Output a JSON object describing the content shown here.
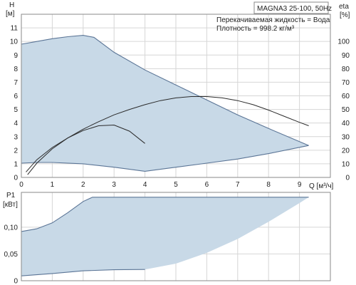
{
  "chart_data": [
    {
      "type": "area",
      "id": "head",
      "title": "MAGNA3 25-100, 50Hz",
      "ylabel_top": "H",
      "ylabel_unit": "[м]",
      "y2label": "eta",
      "y2label_unit": "[%]",
      "xlabel": "Q [м³/ч]",
      "annotation_lines": [
        "Перекачиваемая жидкость = Вода",
        "Плотность = 998.2 кг/м³"
      ],
      "xlim": [
        0,
        10
      ],
      "ylim": [
        0,
        12
      ],
      "y2lim": [
        0,
        120
      ],
      "x_ticks": [
        0,
        1,
        2,
        3,
        4,
        5,
        6,
        7,
        8,
        9
      ],
      "y_ticks": [
        0,
        1,
        2,
        3,
        4,
        5,
        6,
        7,
        8,
        9,
        10,
        11
      ],
      "y2_ticks": [
        0,
        10,
        20,
        30,
        40,
        50,
        60,
        70,
        80,
        90,
        100
      ],
      "grid": true,
      "envelope_upper": [
        [
          0,
          9.8
        ],
        [
          0.5,
          10.0
        ],
        [
          1.0,
          10.2
        ],
        [
          1.5,
          10.35
        ],
        [
          2.0,
          10.45
        ],
        [
          2.35,
          10.3
        ],
        [
          3.0,
          9.2
        ],
        [
          4.0,
          7.9
        ],
        [
          5.0,
          6.8
        ],
        [
          6.0,
          5.7
        ],
        [
          7.0,
          4.6
        ],
        [
          8.0,
          3.6
        ],
        [
          9.3,
          2.35
        ]
      ],
      "envelope_lower": [
        [
          9.3,
          2.35
        ],
        [
          8.0,
          1.75
        ],
        [
          7.0,
          1.35
        ],
        [
          6.0,
          1.05
        ],
        [
          5.0,
          0.75
        ],
        [
          4.0,
          0.45
        ],
        [
          3.0,
          0.75
        ],
        [
          2.0,
          1.0
        ],
        [
          1.0,
          1.1
        ],
        [
          0.5,
          1.1
        ],
        [
          0,
          1.05
        ]
      ],
      "efficiency_curves": [
        {
          "points": [
            [
              0.15,
              4.0
            ],
            [
              0.5,
              13.0
            ],
            [
              1.0,
              22.0
            ],
            [
              1.5,
              29.0
            ],
            [
              2.0,
              34.5
            ],
            [
              2.5,
              38.0
            ],
            [
              3.0,
              38.5
            ],
            [
              3.5,
              34.0
            ],
            [
              4.0,
              25.0
            ]
          ]
        },
        {
          "points": [
            [
              0.2,
              2.0
            ],
            [
              0.5,
              10.5
            ],
            [
              1.0,
              21.0
            ],
            [
              1.5,
              29.0
            ],
            [
              2.0,
              35.5
            ],
            [
              2.5,
              41.0
            ],
            [
              3.0,
              46.0
            ],
            [
              3.5,
              50.0
            ],
            [
              4.0,
              53.5
            ],
            [
              4.5,
              56.5
            ],
            [
              5.0,
              58.5
            ],
            [
              5.5,
              59.5
            ],
            [
              6.0,
              59.5
            ],
            [
              6.5,
              58.5
            ],
            [
              7.0,
              56.5
            ],
            [
              7.5,
              53.5
            ],
            [
              8.0,
              49.5
            ],
            [
              8.5,
              45.0
            ],
            [
              9.0,
              40.5
            ],
            [
              9.3,
              38.0
            ]
          ]
        }
      ]
    },
    {
      "type": "area",
      "id": "power",
      "ylabel_top": "P1",
      "ylabel_unit": "[кВт]",
      "xlim": [
        0,
        10
      ],
      "ylim": [
        0,
        0.165
      ],
      "y_ticks": [
        0,
        0.05,
        0.1
      ],
      "y_tick_labels": [
        "0",
        "0,05",
        "0,10"
      ],
      "grid": true,
      "envelope_upper": [
        [
          0,
          0.092
        ],
        [
          0.5,
          0.097
        ],
        [
          1.0,
          0.108
        ],
        [
          1.5,
          0.127
        ],
        [
          2.0,
          0.148
        ],
        [
          2.3,
          0.156
        ],
        [
          3.0,
          0.156
        ],
        [
          4.0,
          0.156
        ],
        [
          5.0,
          0.156
        ],
        [
          6.0,
          0.156
        ],
        [
          7.0,
          0.156
        ],
        [
          8.0,
          0.156
        ],
        [
          9.3,
          0.156
        ]
      ],
      "envelope_lower": [
        [
          9.3,
          0.156
        ],
        [
          9.0,
          0.145
        ],
        [
          8.0,
          0.11
        ],
        [
          7.0,
          0.078
        ],
        [
          6.0,
          0.052
        ],
        [
          5.0,
          0.032
        ],
        [
          4.0,
          0.021
        ],
        [
          3.0,
          0.0205
        ],
        [
          2.0,
          0.0185
        ],
        [
          1.0,
          0.0135
        ],
        [
          0,
          0.009
        ]
      ]
    }
  ]
}
